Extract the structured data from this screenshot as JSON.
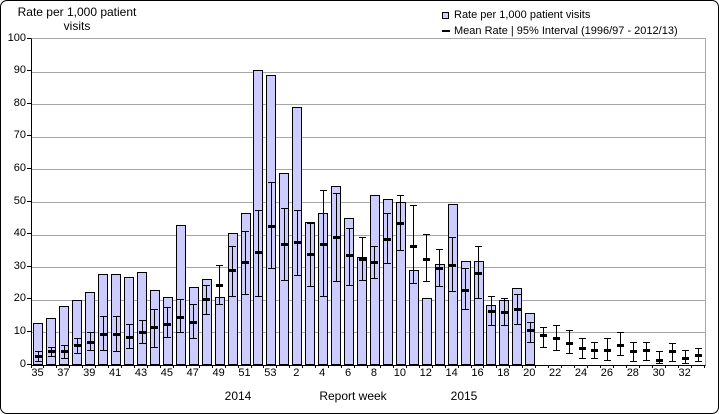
{
  "figure": {
    "y_axis_title": "Rate per 1,000 patient visits",
    "y_axis_title_lines": [
      "Rate per 1,000 patient",
      "visits"
    ],
    "x_axis_title": "Report week",
    "year_left": "2014",
    "year_right": "2015"
  },
  "legend": {
    "bar_label": "Rate per 1,000 patient visits",
    "mean_label": "Mean Rate | 95% Interval (1996/97 - 2012/13)"
  },
  "colors": {
    "bar_fill": "#CCCCFF",
    "bar_border": "#000000",
    "gridline": "#A6A6A6",
    "error_bar": "#000000",
    "text": "#000000"
  },
  "chart_data": {
    "type": "bar",
    "title": "Rate per 1,000 patient visits",
    "xlabel": "Report week",
    "ylabel": "Rate per 1,000 patient visits",
    "ylim": [
      0,
      100
    ],
    "ytick_step": 10,
    "y_ticks": [
      0,
      10,
      20,
      30,
      40,
      50,
      60,
      70,
      80,
      90,
      100
    ],
    "grid": true,
    "x_tick_label_every": 2,
    "legend_position": "top-right-inside",
    "series": [
      {
        "name": "Rate per 1,000 patient visits",
        "type": "bar"
      },
      {
        "name": "Mean Rate | 95% Interval (1996/97 - 2012/13)",
        "type": "errorbar"
      }
    ],
    "weeks": [
      {
        "year": 2014,
        "week": "35",
        "rate": 13,
        "mean": 2.5,
        "lo": 1,
        "hi": 4
      },
      {
        "year": 2014,
        "week": "36",
        "rate": 14.5,
        "mean": 4,
        "lo": 2.5,
        "hi": 5.5
      },
      {
        "year": 2014,
        "week": "37",
        "rate": 18,
        "mean": 4,
        "lo": 2,
        "hi": 6
      },
      {
        "year": 2014,
        "week": "38",
        "rate": 20,
        "mean": 6,
        "lo": 3.5,
        "hi": 8
      },
      {
        "year": 2014,
        "week": "39",
        "rate": 22.5,
        "mean": 7,
        "lo": 4.5,
        "hi": 10
      },
      {
        "year": 2014,
        "week": "40",
        "rate": 28,
        "mean": 9.5,
        "lo": 4.5,
        "hi": 15
      },
      {
        "year": 2014,
        "week": "41",
        "rate": 28,
        "mean": 9.5,
        "lo": 4,
        "hi": 15
      },
      {
        "year": 2014,
        "week": "42",
        "rate": 27,
        "mean": 8.5,
        "lo": 5,
        "hi": 12.5
      },
      {
        "year": 2014,
        "week": "43",
        "rate": 28.5,
        "mean": 10,
        "lo": 6.5,
        "hi": 13.5
      },
      {
        "year": 2014,
        "week": "44",
        "rate": 23,
        "mean": 11.5,
        "lo": 5.5,
        "hi": 17
      },
      {
        "year": 2014,
        "week": "45",
        "rate": 21,
        "mean": 12.5,
        "lo": 8.5,
        "hi": 17.5
      },
      {
        "year": 2014,
        "week": "46",
        "rate": 43,
        "mean": 14.5,
        "lo": 10,
        "hi": 20
      },
      {
        "year": 2014,
        "week": "47",
        "rate": 24,
        "mean": 13,
        "lo": 8,
        "hi": 18.5
      },
      {
        "year": 2014,
        "week": "48",
        "rate": 26.5,
        "mean": 20,
        "lo": 15.5,
        "hi": 24.5
      },
      {
        "year": 2014,
        "week": "49",
        "rate": 21,
        "mean": 24.5,
        "lo": 18.5,
        "hi": 30.5
      },
      {
        "year": 2014,
        "week": "50",
        "rate": 40.5,
        "mean": 29,
        "lo": 21,
        "hi": 36.5
      },
      {
        "year": 2014,
        "week": "51",
        "rate": 46.5,
        "mean": 31.5,
        "lo": 21.5,
        "hi": 41
      },
      {
        "year": 2014,
        "week": "52",
        "rate": 90.5,
        "mean": 34.5,
        "lo": 21,
        "hi": 47.5
      },
      {
        "year": 2014,
        "week": "53",
        "rate": 89,
        "mean": 42.5,
        "lo": 29.5,
        "hi": 56
      },
      {
        "year": 2015,
        "week": "1",
        "rate": 59,
        "mean": 37,
        "lo": 26,
        "hi": 48
      },
      {
        "year": 2015,
        "week": "2",
        "rate": 79,
        "mean": 37.5,
        "lo": 27.5,
        "hi": 47.5
      },
      {
        "year": 2015,
        "week": "3",
        "rate": 44,
        "mean": 34,
        "lo": 24,
        "hi": 43.5
      },
      {
        "year": 2015,
        "week": "4",
        "rate": 46.5,
        "mean": 37,
        "lo": 21,
        "hi": 53.5
      },
      {
        "year": 2015,
        "week": "5",
        "rate": 55,
        "mean": 39,
        "lo": 25.5,
        "hi": 52.5
      },
      {
        "year": 2015,
        "week": "6",
        "rate": 45,
        "mean": 33.5,
        "lo": 24.5,
        "hi": 42
      },
      {
        "year": 2015,
        "week": "7",
        "rate": 33,
        "mean": 32.5,
        "lo": 26,
        "hi": 39
      },
      {
        "year": 2015,
        "week": "8",
        "rate": 52,
        "mean": 31.5,
        "lo": 26.5,
        "hi": 36.5
      },
      {
        "year": 2015,
        "week": "9",
        "rate": 51,
        "mean": 38.5,
        "lo": 31,
        "hi": 46.5
      },
      {
        "year": 2015,
        "week": "10",
        "rate": 50,
        "mean": 43.5,
        "lo": 35,
        "hi": 52
      },
      {
        "year": 2015,
        "week": "11",
        "rate": 29,
        "mean": 36.5,
        "lo": 25,
        "hi": 49
      },
      {
        "year": 2015,
        "week": "12",
        "rate": 20.5,
        "mean": 32.5,
        "lo": 25.5,
        "hi": 40
      },
      {
        "year": 2015,
        "week": "13",
        "rate": 31,
        "mean": 29.5,
        "lo": 24,
        "hi": 35.5
      },
      {
        "year": 2015,
        "week": "14",
        "rate": 49.5,
        "mean": 30.5,
        "lo": 22.5,
        "hi": 39
      },
      {
        "year": 2015,
        "week": "15",
        "rate": 32,
        "mean": 23,
        "lo": 17,
        "hi": 29.5
      },
      {
        "year": 2015,
        "week": "16",
        "rate": 32,
        "mean": 28,
        "lo": 20.5,
        "hi": 36.5
      },
      {
        "year": 2015,
        "week": "17",
        "rate": 18.5,
        "mean": 16.5,
        "lo": 12,
        "hi": 21
      },
      {
        "year": 2015,
        "week": "18",
        "rate": 20,
        "mean": 16,
        "lo": 12,
        "hi": 20.5
      },
      {
        "year": 2015,
        "week": "19",
        "rate": 23.5,
        "mean": 17,
        "lo": 12.5,
        "hi": 21.5
      },
      {
        "year": 2015,
        "week": "20",
        "rate": 16,
        "mean": 10.5,
        "lo": 7,
        "hi": 13
      },
      {
        "year": 2015,
        "week": "21",
        "rate": null,
        "mean": 9,
        "lo": 5.5,
        "hi": 11.5
      },
      {
        "year": 2015,
        "week": "22",
        "rate": null,
        "mean": 8,
        "lo": 4.5,
        "hi": 12
      },
      {
        "year": 2015,
        "week": "23",
        "rate": null,
        "mean": 6.5,
        "lo": 3.5,
        "hi": 10.5
      },
      {
        "year": 2015,
        "week": "24",
        "rate": null,
        "mean": 5,
        "lo": 2,
        "hi": 8
      },
      {
        "year": 2015,
        "week": "25",
        "rate": null,
        "mean": 4.5,
        "lo": 2,
        "hi": 7
      },
      {
        "year": 2015,
        "week": "26",
        "rate": null,
        "mean": 4.5,
        "lo": 1.5,
        "hi": 8
      },
      {
        "year": 2015,
        "week": "27",
        "rate": null,
        "mean": 6,
        "lo": 3,
        "hi": 10
      },
      {
        "year": 2015,
        "week": "28",
        "rate": null,
        "mean": 4,
        "lo": 1,
        "hi": 7
      },
      {
        "year": 2015,
        "week": "29",
        "rate": null,
        "mean": 4.5,
        "lo": 1.5,
        "hi": 7
      },
      {
        "year": 2015,
        "week": "30",
        "rate": null,
        "mean": 1.5,
        "lo": 0.5,
        "hi": 4
      },
      {
        "year": 2015,
        "week": "31",
        "rate": null,
        "mean": 4,
        "lo": 1,
        "hi": 6.5
      },
      {
        "year": 2015,
        "week": "32",
        "rate": null,
        "mean": 2,
        "lo": 0.5,
        "hi": 4.5
      },
      {
        "year": 2015,
        "week": "33",
        "rate": null,
        "mean": 3,
        "lo": 1,
        "hi": 5
      }
    ]
  }
}
